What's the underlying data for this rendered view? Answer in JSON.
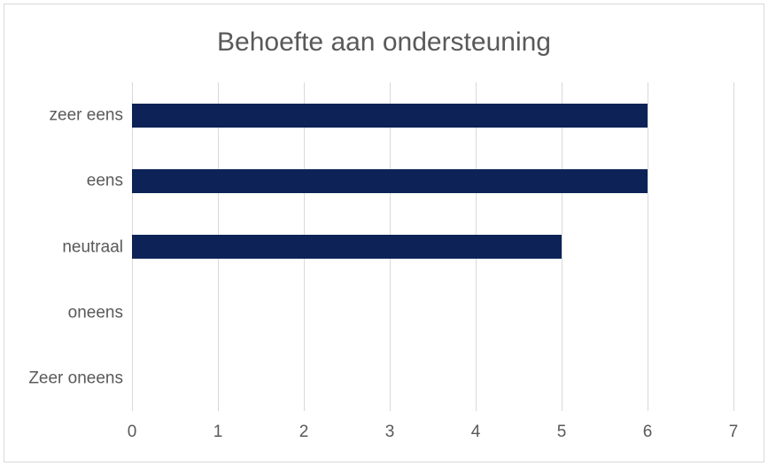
{
  "chart_data": {
    "type": "bar",
    "orientation": "horizontal",
    "title": "Behoefte aan ondersteuning",
    "categories": [
      "zeer eens",
      "eens",
      "neutraal",
      "oneens",
      "Zeer oneens"
    ],
    "values": [
      6,
      6,
      5,
      0,
      0
    ],
    "xlabel": "",
    "ylabel": "",
    "xlim": [
      0,
      7
    ],
    "x_ticks": [
      0,
      1,
      2,
      3,
      4,
      5,
      6,
      7
    ],
    "grid": true,
    "legend": false,
    "colors": {
      "bar": "#0d2357",
      "gridline": "#d9d9d9",
      "axis_text": "#595959",
      "title_text": "#595959",
      "chart_border": "#d9d9d9",
      "background": "#ffffff"
    }
  }
}
